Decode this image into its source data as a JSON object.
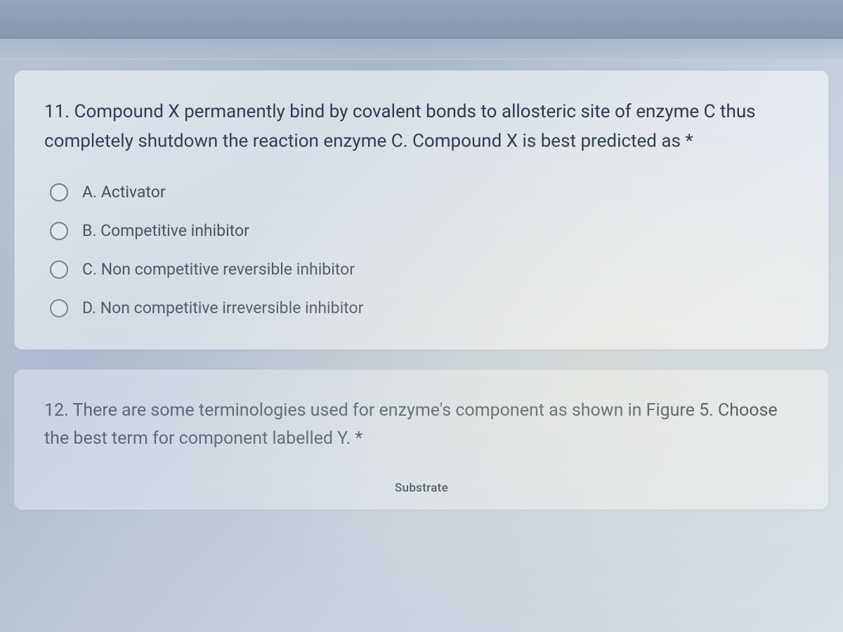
{
  "question11": {
    "text": "11. Compound X permanently bind by covalent bonds to allosteric site of enzyme C thus completely shutdown the reaction enzyme C. Compound X is best predicted as",
    "required_mark": "*",
    "options": [
      {
        "label": "A. Activator"
      },
      {
        "label": "B. Competitive inhibitor"
      },
      {
        "label": "C. Non competitive reversible inhibitor"
      },
      {
        "label": "D. Non competitive irreversible inhibitor"
      }
    ]
  },
  "question12": {
    "text": "12. There are some terminologies used for enzyme's component as shown in Figure 5. Choose the best term for component labelled Y.",
    "required_mark": "*",
    "figure_label": "Substrate"
  },
  "styling": {
    "background_gradient_colors": [
      "#b8c5d6",
      "#a8b8ca",
      "#c5d0dd",
      "#d8e0e8"
    ],
    "card_background": "rgba(255,255,255,0.55)",
    "card_border_radius": 12,
    "question_text_color": "#2a3a52",
    "question_fontsize": 26,
    "option_text_color": "#3a4556",
    "option_fontsize": 23,
    "radio_border_color": "#6b7885",
    "radio_size": 26
  }
}
